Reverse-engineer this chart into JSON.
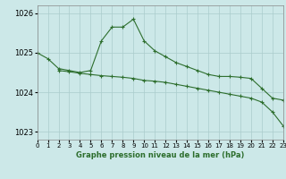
{
  "line1_x": [
    0,
    1,
    2,
    3,
    4,
    5,
    6,
    7,
    8,
    9,
    10,
    11,
    12,
    13,
    14,
    15,
    16,
    17,
    18,
    19,
    20,
    21,
    22,
    23
  ],
  "line1_y": [
    1025.0,
    1024.85,
    1024.6,
    1024.55,
    1024.5,
    1024.55,
    1025.3,
    1025.65,
    1025.65,
    1025.85,
    1025.3,
    1025.05,
    1024.9,
    1024.75,
    1024.65,
    1024.55,
    1024.45,
    1024.4,
    1024.4,
    1024.38,
    1024.35,
    1024.1,
    1023.85,
    1023.8
  ],
  "line2_x": [
    2,
    3,
    4,
    5,
    6,
    7,
    8,
    9,
    10,
    11,
    12,
    13,
    14,
    15,
    16,
    17,
    18,
    19,
    20,
    21,
    22,
    23
  ],
  "line2_y": [
    1024.55,
    1024.52,
    1024.48,
    1024.45,
    1024.42,
    1024.4,
    1024.38,
    1024.35,
    1024.3,
    1024.28,
    1024.25,
    1024.2,
    1024.15,
    1024.1,
    1024.05,
    1024.0,
    1023.95,
    1023.9,
    1023.85,
    1023.75,
    1023.5,
    1023.15
  ],
  "bg_color": "#cce8e8",
  "grid_color": "#aacccc",
  "line_color": "#2d6e2d",
  "xlabel": "Graphe pression niveau de la mer (hPa)",
  "xlim": [
    0,
    23
  ],
  "ylim": [
    1022.8,
    1026.2
  ],
  "yticks": [
    1023,
    1024,
    1025,
    1026
  ],
  "xticks": [
    0,
    1,
    2,
    3,
    4,
    5,
    6,
    7,
    8,
    9,
    10,
    11,
    12,
    13,
    14,
    15,
    16,
    17,
    18,
    19,
    20,
    21,
    22,
    23
  ],
  "ytick_fontsize": 6,
  "xtick_fontsize": 5
}
